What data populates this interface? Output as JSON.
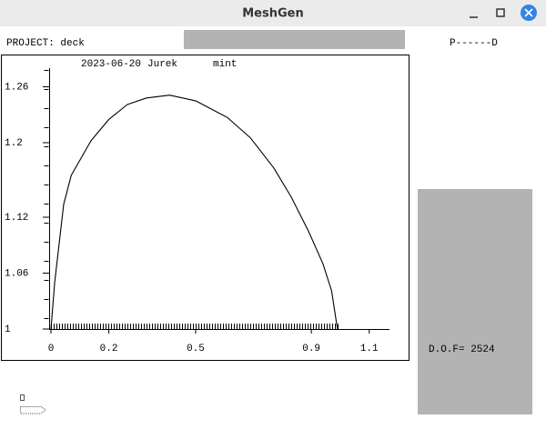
{
  "window_title": "MeshGen",
  "project_label": "PROJECT: deck",
  "status_text": "P------D",
  "plot_header": [
    "2023-06-20",
    "Jurek",
    "mint"
  ],
  "dof_label": "D.O.F= 2524",
  "chart_data": {
    "type": "line",
    "color": "#000000",
    "x": [
      0,
      0.013,
      0.044,
      0.07,
      0.138,
      0.2,
      0.264,
      0.33,
      0.41,
      0.5,
      0.61,
      0.69,
      0.77,
      0.83,
      0.89,
      0.94,
      0.97,
      0.99
    ],
    "values": [
      1,
      1.05,
      1.134,
      1.165,
      1.202,
      1.225,
      1.241,
      1.248,
      1.251,
      1.245,
      1.227,
      1.205,
      1.173,
      1.142,
      1.105,
      1.07,
      1.041,
      1
    ],
    "xlim": [
      0,
      1.17
    ],
    "ylim": [
      1,
      1.28
    ],
    "xticks": [
      0,
      0.2,
      0.5,
      0.9,
      1.1
    ],
    "yticks": [
      1,
      1.06,
      1.12,
      1.2,
      1.26
    ]
  }
}
